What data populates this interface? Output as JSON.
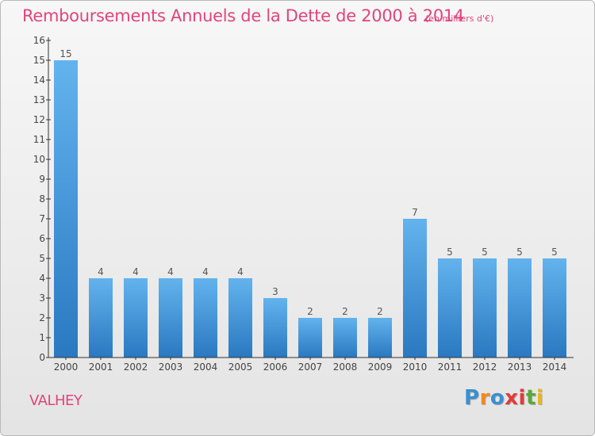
{
  "header": {
    "title": "Remboursements Annuels de la Dette de 2000 à 2014",
    "unit": "(en milliers d'€)"
  },
  "footer": {
    "commune": "VALHEY",
    "logo_letters": [
      "P",
      "r",
      "o",
      "x",
      "i",
      "t",
      "i"
    ],
    "logo_colors": [
      "#3a8fd0",
      "#f08a1c",
      "#3a8fd0",
      "#e23b3b",
      "#e23b3b",
      "#5aa83a",
      "#e8b51c"
    ]
  },
  "colors": {
    "bar_light": "#63b3ee",
    "bar_dark": "#2a78c0",
    "title": "#e0457c",
    "axis": "#333333"
  },
  "chart_data": {
    "type": "bar",
    "title": "Remboursements Annuels de la Dette de 2000 à 2014",
    "categories": [
      "2000",
      "2001",
      "2002",
      "2003",
      "2004",
      "2005",
      "2006",
      "2007",
      "2008",
      "2009",
      "2010",
      "2011",
      "2012",
      "2013",
      "2014"
    ],
    "values": [
      15,
      4,
      4,
      4,
      4,
      4,
      3,
      2,
      2,
      2,
      7,
      5,
      5,
      5,
      5
    ],
    "yticks": [
      "0",
      "1",
      "2",
      "3",
      "4",
      "5",
      "6",
      "7",
      "8",
      "9",
      "10",
      "11",
      "12",
      "13",
      "14",
      "15",
      "16"
    ],
    "ylim": [
      0,
      16
    ],
    "xlabel": "",
    "ylabel": "",
    "grid": false,
    "legend": "none"
  }
}
